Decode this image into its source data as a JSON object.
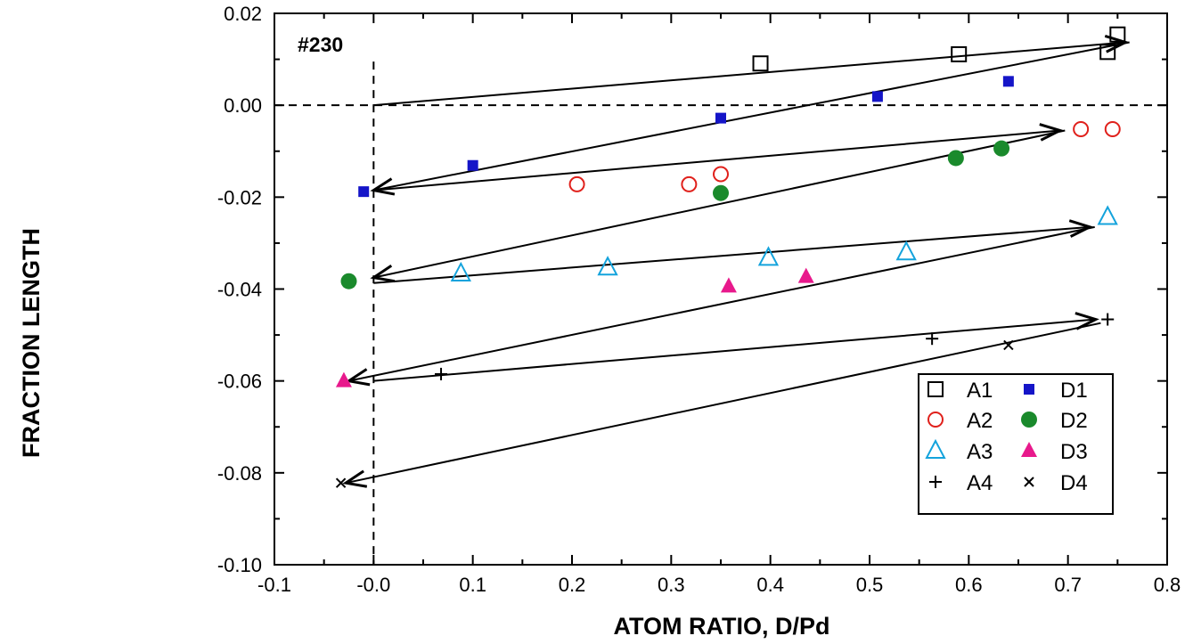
{
  "chart_data": {
    "type": "scatter",
    "title": "",
    "annotation": "#230",
    "xlabel": "ATOM RATIO, D/Pd",
    "ylabel": "FRACTION LENGTH",
    "xlim": [
      -0.1,
      0.8
    ],
    "ylim": [
      -0.1,
      0.02
    ],
    "xticks": [
      -0.1,
      0.0,
      0.1,
      0.2,
      0.3,
      0.4,
      0.5,
      0.6,
      0.7,
      0.8
    ],
    "xtick_labels": [
      "-0.1",
      "-0.0",
      "0.1",
      "0.2",
      "0.3",
      "0.4",
      "0.5",
      "0.6",
      "0.7",
      "0.8"
    ],
    "yticks": [
      0.02,
      0.0,
      -0.02,
      -0.04,
      -0.06,
      -0.08,
      -0.1
    ],
    "ytick_labels": [
      "0.02",
      "0.00",
      "-0.02",
      "-0.04",
      "-0.06",
      "-0.08",
      "-0.10"
    ],
    "grid": false,
    "reference_lines": [
      {
        "orientation": "horizontal",
        "value": 0.0,
        "style": "dashed"
      },
      {
        "orientation": "vertical",
        "value": 0.0,
        "style": "dashed"
      }
    ],
    "legend_position": "bottom-right",
    "series": [
      {
        "name": "A1",
        "marker": "open-square",
        "color": "#000000",
        "points": [
          [
            0.39,
            0.0091
          ],
          [
            0.59,
            0.0111
          ],
          [
            0.74,
            0.0116
          ],
          [
            0.75,
            0.0154
          ]
        ]
      },
      {
        "name": "A2",
        "marker": "open-circle",
        "color": "#e0201b",
        "points": [
          [
            0.205,
            -0.0172
          ],
          [
            0.318,
            -0.0172
          ],
          [
            0.35,
            -0.015
          ],
          [
            0.713,
            -0.0052
          ],
          [
            0.745,
            -0.0052
          ]
        ]
      },
      {
        "name": "A3",
        "marker": "open-triangle",
        "color": "#14a3dc",
        "points": [
          [
            0.088,
            -0.0366
          ],
          [
            0.236,
            -0.0353
          ],
          [
            0.398,
            -0.0332
          ],
          [
            0.537,
            -0.032
          ],
          [
            0.74,
            -0.0243
          ]
        ]
      },
      {
        "name": "A4",
        "marker": "plus",
        "color": "#000000",
        "points": [
          [
            0.068,
            -0.0585
          ],
          [
            0.563,
            -0.0508
          ],
          [
            0.74,
            -0.0466
          ]
        ]
      },
      {
        "name": "D1",
        "marker": "filled-square",
        "color": "#1515c8",
        "points": [
          [
            -0.01,
            -0.0188
          ],
          [
            0.1,
            -0.0131
          ],
          [
            0.35,
            -0.0028
          ],
          [
            0.508,
            0.0019
          ],
          [
            0.64,
            0.0052
          ]
        ]
      },
      {
        "name": "D2",
        "marker": "filled-circle",
        "color": "#1a8a2c",
        "points": [
          [
            -0.025,
            -0.0383
          ],
          [
            0.35,
            -0.0191
          ],
          [
            0.587,
            -0.0115
          ],
          [
            0.633,
            -0.0094
          ]
        ]
      },
      {
        "name": "D3",
        "marker": "filled-triangle",
        "color": "#e8198c",
        "points": [
          [
            -0.03,
            -0.06
          ],
          [
            0.358,
            -0.0394
          ],
          [
            0.436,
            -0.0373
          ]
        ]
      },
      {
        "name": "D4",
        "marker": "x",
        "color": "#000000",
        "points": [
          [
            -0.033,
            -0.0822
          ],
          [
            0.64,
            -0.0522
          ]
        ]
      }
    ],
    "arrows": [
      {
        "from": [
          0.0,
          0.0
        ],
        "to": [
          0.758,
          0.0137
        ]
      },
      {
        "from": [
          0.762,
          0.0137
        ],
        "to": [
          0.0,
          -0.0185
        ]
      },
      {
        "from": [
          0.0,
          -0.0185
        ],
        "to": [
          0.692,
          -0.0055
        ]
      },
      {
        "from": [
          0.697,
          -0.0055
        ],
        "to": [
          0.0,
          -0.0375
        ]
      },
      {
        "from": [
          0.0,
          -0.0387
        ],
        "to": [
          0.722,
          -0.0265
        ]
      },
      {
        "from": [
          0.727,
          -0.0265
        ],
        "to": [
          -0.025,
          -0.06
        ]
      },
      {
        "from": [
          0.0,
          -0.06
        ],
        "to": [
          0.728,
          -0.0466
        ]
      },
      {
        "from": [
          0.733,
          -0.0474
        ],
        "to": [
          -0.028,
          -0.0822
        ]
      }
    ]
  }
}
